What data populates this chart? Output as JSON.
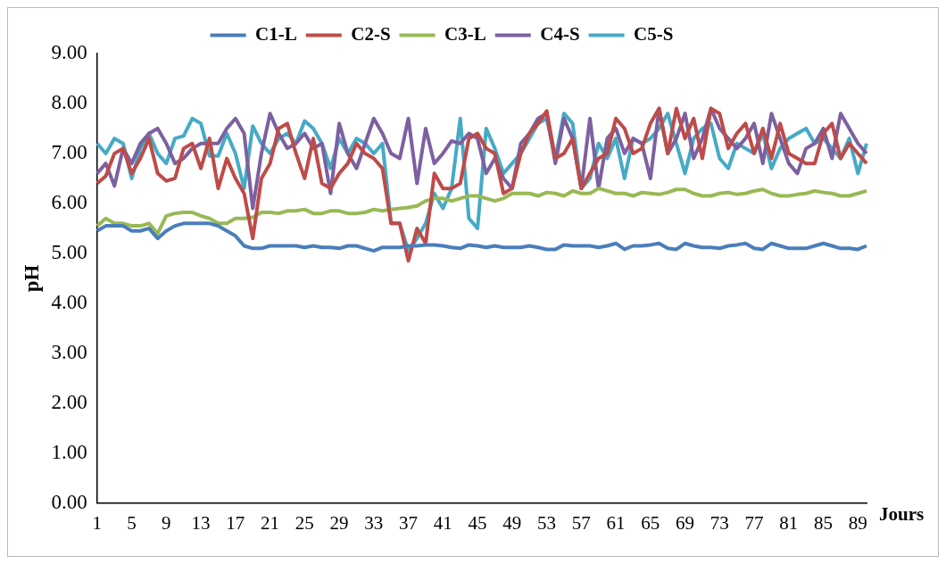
{
  "chart_data": {
    "type": "line",
    "xlabel": "Jours",
    "ylabel": "pH",
    "legend": "top",
    "grid": false,
    "marker": "none",
    "line_style": "solid",
    "categories": [
      "1",
      null,
      null,
      null,
      "5",
      null,
      null,
      null,
      "9",
      null,
      null,
      null,
      "13",
      null,
      null,
      null,
      "17",
      null,
      null,
      null,
      "21",
      null,
      null,
      null,
      "25",
      null,
      null,
      null,
      "29",
      null,
      null,
      null,
      "33",
      null,
      null,
      null,
      "37",
      null,
      null,
      null,
      "41",
      null,
      null,
      null,
      "45",
      null,
      null,
      null,
      "49",
      null,
      null,
      null,
      "53",
      null,
      null,
      null,
      "57",
      null,
      null,
      null,
      "61",
      null,
      null,
      null,
      "65",
      null,
      null,
      null,
      "69",
      null,
      null,
      null,
      "73",
      null,
      null,
      null,
      "77",
      null,
      null,
      null,
      "81",
      null,
      null,
      null,
      "85",
      null,
      null,
      null,
      "89",
      null
    ],
    "ylim": [
      0,
      9
    ],
    "yticks": [
      {
        "value": 0,
        "label": "0.00"
      },
      {
        "value": 1,
        "label": "1.00"
      },
      {
        "value": 2,
        "label": "2.00"
      },
      {
        "value": 3,
        "label": "3.00"
      },
      {
        "value": 4,
        "label": "4.00"
      },
      {
        "value": 5,
        "label": "5.00"
      },
      {
        "value": 6,
        "label": "6.00"
      },
      {
        "value": 7,
        "label": "7.00"
      },
      {
        "value": 8,
        "label": "8.00"
      },
      {
        "value": 9,
        "label": "9.00"
      }
    ],
    "series": [
      {
        "name": "C1-L",
        "color": "#4a7ebb",
        "values": [
          5.45,
          5.55,
          5.55,
          5.55,
          5.45,
          5.45,
          5.5,
          5.3,
          5.45,
          5.55,
          5.6,
          5.6,
          5.6,
          5.6,
          5.55,
          5.45,
          5.35,
          5.15,
          5.1,
          5.1,
          5.15,
          5.15,
          5.15,
          5.15,
          5.12,
          5.15,
          5.12,
          5.12,
          5.1,
          5.15,
          5.15,
          5.1,
          5.05,
          5.12,
          5.12,
          5.12,
          5.15,
          5.15,
          5.17,
          5.17,
          5.15,
          5.12,
          5.1,
          5.17,
          5.15,
          5.12,
          5.15,
          5.12,
          5.12,
          5.12,
          5.15,
          5.12,
          5.08,
          5.08,
          5.17,
          5.15,
          5.15,
          5.15,
          5.12,
          5.15,
          5.2,
          5.08,
          5.15,
          5.15,
          5.17,
          5.2,
          5.1,
          5.08,
          5.2,
          5.15,
          5.12,
          5.12,
          5.1,
          5.15,
          5.17,
          5.2,
          5.1,
          5.08,
          5.2,
          5.15,
          5.1,
          5.1,
          5.1,
          5.15,
          5.2,
          5.15,
          5.1,
          5.1,
          5.08,
          5.15
        ]
      },
      {
        "name": "C2-S",
        "color": "#be4b48",
        "values": [
          6.4,
          6.55,
          7.0,
          7.1,
          6.6,
          6.9,
          7.3,
          6.6,
          6.45,
          6.5,
          7.1,
          7.2,
          6.7,
          7.3,
          6.3,
          6.9,
          6.5,
          6.2,
          5.3,
          6.5,
          6.8,
          7.5,
          7.6,
          7.0,
          6.5,
          7.3,
          6.4,
          6.3,
          6.6,
          6.8,
          7.2,
          7.0,
          6.9,
          6.7,
          5.6,
          5.6,
          4.85,
          5.5,
          5.2,
          6.6,
          6.3,
          6.3,
          6.4,
          7.3,
          7.4,
          7.1,
          7.0,
          6.2,
          6.3,
          7.0,
          7.4,
          7.6,
          7.85,
          6.9,
          7.0,
          7.3,
          6.3,
          6.6,
          6.9,
          7.0,
          7.7,
          7.5,
          7.0,
          7.1,
          7.6,
          7.9,
          7.0,
          7.9,
          7.3,
          7.7,
          6.9,
          7.9,
          7.8,
          7.1,
          7.4,
          7.6,
          7.0,
          7.5,
          6.9,
          7.6,
          7.0,
          6.9,
          6.8,
          6.8,
          7.4,
          7.6,
          6.9,
          7.2,
          7.0,
          6.8
        ]
      },
      {
        "name": "C3-L",
        "color": "#98b954",
        "values": [
          5.55,
          5.7,
          5.6,
          5.6,
          5.55,
          5.55,
          5.6,
          5.4,
          5.75,
          5.8,
          5.82,
          5.82,
          5.75,
          5.7,
          5.6,
          5.6,
          5.7,
          5.7,
          5.72,
          5.82,
          5.82,
          5.8,
          5.85,
          5.85,
          5.88,
          5.8,
          5.8,
          5.85,
          5.85,
          5.8,
          5.8,
          5.82,
          5.88,
          5.85,
          5.88,
          5.9,
          5.92,
          5.95,
          6.05,
          6.1,
          6.1,
          6.05,
          6.1,
          6.15,
          6.15,
          6.1,
          6.05,
          6.1,
          6.2,
          6.2,
          6.2,
          6.15,
          6.22,
          6.2,
          6.15,
          6.25,
          6.2,
          6.2,
          6.3,
          6.25,
          6.2,
          6.2,
          6.15,
          6.22,
          6.2,
          6.18,
          6.22,
          6.28,
          6.28,
          6.2,
          6.15,
          6.15,
          6.2,
          6.22,
          6.18,
          6.2,
          6.25,
          6.28,
          6.2,
          6.15,
          6.15,
          6.18,
          6.2,
          6.25,
          6.22,
          6.2,
          6.15,
          6.15,
          6.2,
          6.25
        ]
      },
      {
        "name": "C4-S",
        "color": "#7d60a0",
        "values": [
          6.6,
          6.8,
          6.35,
          7.1,
          6.8,
          7.2,
          7.4,
          7.5,
          7.2,
          6.8,
          6.9,
          7.1,
          7.2,
          7.2,
          7.2,
          7.5,
          7.7,
          7.4,
          5.9,
          7.0,
          7.8,
          7.4,
          7.1,
          7.2,
          7.4,
          7.1,
          7.2,
          6.2,
          7.6,
          7.0,
          6.7,
          7.2,
          7.7,
          7.4,
          7.0,
          6.9,
          7.7,
          6.4,
          7.5,
          6.8,
          7.0,
          7.25,
          7.2,
          7.4,
          7.3,
          6.6,
          6.9,
          6.5,
          6.3,
          7.2,
          7.4,
          7.7,
          7.8,
          6.8,
          7.7,
          7.3,
          6.3,
          7.7,
          6.3,
          7.3,
          7.5,
          7.0,
          7.3,
          7.2,
          6.5,
          7.9,
          7.0,
          7.3,
          7.8,
          6.9,
          7.3,
          7.9,
          7.5,
          7.3,
          7.1,
          7.3,
          7.6,
          6.8,
          7.8,
          7.3,
          6.8,
          6.6,
          7.1,
          7.2,
          7.5,
          6.9,
          7.8,
          7.5,
          7.2,
          7.0
        ]
      },
      {
        "name": "C5-S",
        "color": "#46aac5",
        "values": [
          7.2,
          7.0,
          7.3,
          7.2,
          6.5,
          7.1,
          7.4,
          7.0,
          6.8,
          7.3,
          7.35,
          7.7,
          7.6,
          6.95,
          6.95,
          7.4,
          7.0,
          6.3,
          7.55,
          7.2,
          7.0,
          7.3,
          7.4,
          7.2,
          7.65,
          7.5,
          7.2,
          6.7,
          7.3,
          7.0,
          7.3,
          7.2,
          7.0,
          7.2,
          5.6,
          5.6,
          5.05,
          5.3,
          5.6,
          6.2,
          5.9,
          6.3,
          7.7,
          5.7,
          5.5,
          7.5,
          7.1,
          6.6,
          6.8,
          7.0,
          7.3,
          7.6,
          7.7,
          6.9,
          7.8,
          7.6,
          6.3,
          6.5,
          7.2,
          6.9,
          7.3,
          6.5,
          7.3,
          7.2,
          7.3,
          7.5,
          7.8,
          7.2,
          6.6,
          7.3,
          7.5,
          7.6,
          6.9,
          6.7,
          7.2,
          7.1,
          7.0,
          7.4,
          6.7,
          7.1,
          7.3,
          7.4,
          7.5,
          7.2,
          7.3,
          7.1,
          6.9,
          7.3,
          6.6,
          7.2
        ]
      }
    ]
  }
}
